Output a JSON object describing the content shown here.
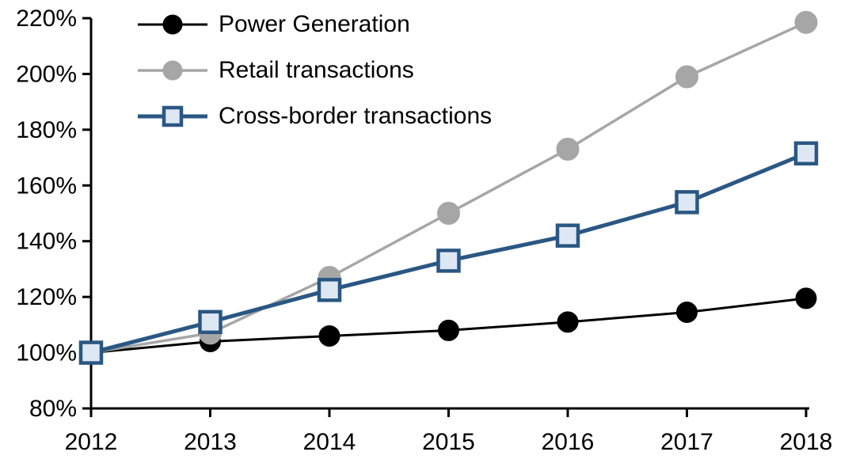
{
  "chart_data": {
    "type": "line",
    "title": "",
    "xlabel": "",
    "ylabel": "",
    "x_labels": [
      "2012",
      "2013",
      "2014",
      "2015",
      "2016",
      "2017",
      "2018"
    ],
    "ylim": [
      80,
      220
    ],
    "ytick_step": 20,
    "y_tick_labels": [
      "80%",
      "100%",
      "120%",
      "140%",
      "160%",
      "180%",
      "200%",
      "220%"
    ],
    "grid": false,
    "legend_position": "top-left",
    "axis_color": "#000000",
    "series": [
      {
        "name": "Power Generation",
        "values": [
          100,
          104,
          106,
          108,
          111,
          114.5,
          119.5
        ],
        "color": "#000000",
        "marker": "circle",
        "marker_fill": "#000000",
        "marker_size": 13,
        "line_width": 3
      },
      {
        "name": "Retail transactions",
        "values": [
          100,
          107,
          127,
          150,
          173,
          199,
          218.5
        ],
        "color": "#A6A6A6",
        "marker": "circle",
        "marker_fill": "#A6A6A6",
        "marker_size": 14,
        "line_width": 3.5
      },
      {
        "name": "Cross-border transactions",
        "values": [
          100,
          111,
          122.5,
          133,
          142,
          154,
          171.5
        ],
        "color": "#2A5783",
        "marker": "square",
        "marker_fill": "#DEE8F5",
        "marker_size": 13,
        "line_width": 5
      }
    ]
  }
}
